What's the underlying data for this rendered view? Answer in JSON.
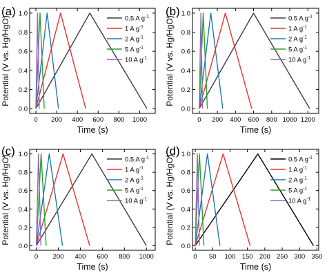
{
  "figure": {
    "panels_label": [
      "(a)",
      "(b)",
      "(c)",
      "(d)"
    ]
  },
  "chart_data": [
    {
      "type": "line",
      "panel": "(a)",
      "xlabel": "Time (s)",
      "ylabel": "Potential (V vs. Hg/HgO)",
      "xlim": [
        -60,
        1150
      ],
      "ylim": [
        -0.05,
        1.05
      ],
      "xticks": [
        0,
        200,
        400,
        600,
        800,
        1000
      ],
      "yticks": [
        0.0,
        0.2,
        0.4,
        0.6,
        0.8,
        1.0
      ],
      "legend_position": "top-right",
      "series": [
        {
          "name": "0.5 A g-1",
          "color": "#3c3c3c",
          "x": [
            0,
            520,
            1070
          ],
          "y": [
            0.0,
            1.0,
            0.0
          ]
        },
        {
          "name": "1 A g-1",
          "color": "#e8322e",
          "x": [
            0,
            238,
            480
          ],
          "y": [
            0.0,
            1.0,
            0.0
          ]
        },
        {
          "name": "2 A g-1",
          "color": "#1f77b4",
          "x": [
            0,
            108,
            218
          ],
          "y": [
            0.0,
            1.0,
            0.0
          ]
        },
        {
          "name": "5 A g-1",
          "color": "#2ca02c",
          "x": [
            0,
            40,
            80
          ],
          "y": [
            0.0,
            1.0,
            0.0
          ]
        },
        {
          "name": "10 A g-1",
          "color": "#9467bd",
          "x": [
            0,
            16,
            33
          ],
          "y": [
            0.0,
            1.0,
            0.0
          ]
        }
      ]
    },
    {
      "type": "line",
      "panel": "(b)",
      "xlabel": "Time (s)",
      "ylabel": "Potential (V vs. Hg/HgO)",
      "xlim": [
        -75,
        1320
      ],
      "ylim": [
        -0.05,
        1.05
      ],
      "xticks": [
        0,
        200,
        400,
        600,
        800,
        1000,
        1200
      ],
      "yticks": [
        0.0,
        0.2,
        0.4,
        0.6,
        0.8,
        1.0
      ],
      "legend_position": "top-right",
      "series": [
        {
          "name": "0.5 A g-1",
          "color": "#3c3c3c",
          "x": [
            0,
            600,
            1220
          ],
          "y": [
            0.0,
            1.0,
            0.0
          ]
        },
        {
          "name": "1 A g-1",
          "color": "#e8322e",
          "x": [
            0,
            288,
            580
          ],
          "y": [
            0.0,
            1.0,
            0.0
          ]
        },
        {
          "name": "2 A g-1",
          "color": "#1f77b4",
          "x": [
            0,
            128,
            260
          ],
          "y": [
            0.0,
            1.0,
            0.0
          ]
        },
        {
          "name": "5 A g-1",
          "color": "#2ca02c",
          "x": [
            0,
            44,
            90
          ],
          "y": [
            0.0,
            1.0,
            0.0
          ]
        },
        {
          "name": "10 A g-1",
          "color": "#9467bd",
          "x": [
            0,
            18,
            36
          ],
          "y": [
            0.0,
            1.0,
            0.0
          ]
        }
      ]
    },
    {
      "type": "line",
      "panel": "(c)",
      "xlabel": "Time (s)",
      "ylabel": "Potential (V vs. Hg/HgO)",
      "xlim": [
        -60,
        1080
      ],
      "ylim": [
        -0.05,
        1.05
      ],
      "xticks": [
        0,
        200,
        400,
        600,
        800,
        1000
      ],
      "yticks": [
        0.0,
        0.2,
        0.4,
        0.6,
        0.8,
        1.0
      ],
      "legend_position": "top-right",
      "series": [
        {
          "name": "0.5 A g-1",
          "color": "#3c3c3c",
          "x": [
            0,
            505,
            1000
          ],
          "y": [
            0.0,
            1.0,
            0.0
          ]
        },
        {
          "name": "1 A g-1",
          "color": "#e8322e",
          "x": [
            0,
            243,
            485
          ],
          "y": [
            0.0,
            1.0,
            0.0
          ]
        },
        {
          "name": "2 A g-1",
          "color": "#1f77b4",
          "x": [
            0,
            118,
            238
          ],
          "y": [
            0.0,
            1.0,
            0.0
          ]
        },
        {
          "name": "5 A g-1",
          "color": "#2ca02c",
          "x": [
            0,
            44,
            90
          ],
          "y": [
            0.0,
            1.0,
            0.0
          ]
        },
        {
          "name": "10 A g-1",
          "color": "#9467bd",
          "x": [
            0,
            20,
            42
          ],
          "y": [
            0.0,
            1.0,
            0.0
          ]
        }
      ]
    },
    {
      "type": "line",
      "panel": "(d)",
      "xlabel": "Time (s)",
      "ylabel": "Potential (V vs. Hg/HgO)",
      "xlim": [
        -8,
        355
      ],
      "ylim": [
        -0.05,
        1.05
      ],
      "xticks": [
        0,
        50,
        100,
        150,
        200,
        250,
        300,
        350
      ],
      "yticks": [
        0.0,
        0.2,
        0.4,
        0.6,
        0.8,
        1.0
      ],
      "legend_position": "top-right",
      "series": [
        {
          "name": "0.5 A g-1",
          "color": "#000000",
          "x": [
            0,
            180,
            340
          ],
          "y": [
            0.0,
            1.0,
            0.0
          ]
        },
        {
          "name": "1 A g-1",
          "color": "#e8322e",
          "x": [
            0,
            80,
            158
          ],
          "y": [
            0.0,
            1.0,
            0.0
          ]
        },
        {
          "name": "2 A g-1",
          "color": "#1f77b4",
          "x": [
            0,
            35,
            71
          ],
          "y": [
            0.0,
            1.0,
            0.0
          ]
        },
        {
          "name": "5 A g-1",
          "color": "#2ca02c",
          "x": [
            0,
            12,
            25
          ],
          "y": [
            0.0,
            1.0,
            0.0
          ]
        },
        {
          "name": "10 A g-1",
          "color": "#9467bd",
          "x": [
            0,
            6,
            12
          ],
          "y": [
            0.0,
            1.0,
            0.0
          ]
        }
      ]
    }
  ]
}
